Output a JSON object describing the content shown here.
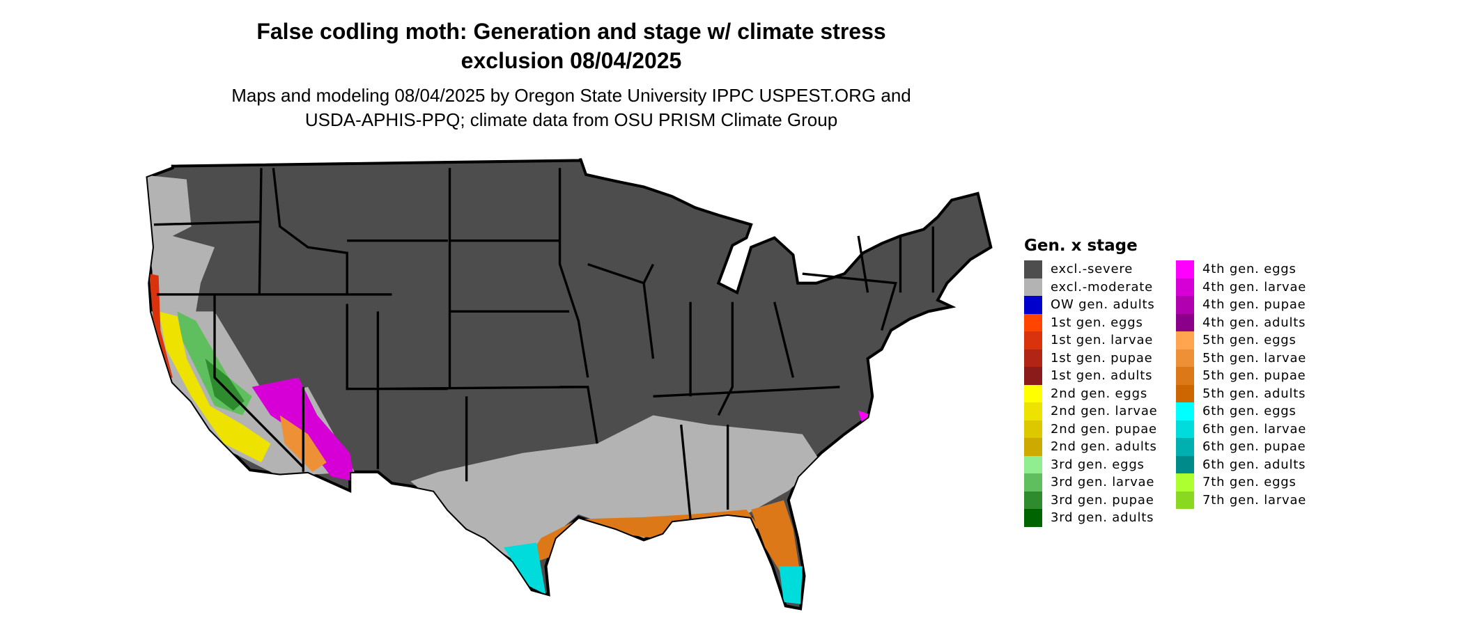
{
  "title": [
    "False codling moth: Generation and stage w/ climate stress",
    "exclusion 08/04/2025"
  ],
  "subtitle": [
    "Maps and modeling 08/04/2025 by Oregon State University IPPC USPEST.ORG and",
    "USDA-APHIS-PPQ; climate data from OSU PRISM Climate Group"
  ],
  "legend": {
    "title": "Gen. x stage",
    "items": [
      {
        "label": "excl.-severe",
        "color": "#4d4d4d"
      },
      {
        "label": "excl.-moderate",
        "color": "#b3b3b3"
      },
      {
        "label": "OW gen. adults",
        "color": "#0000cd"
      },
      {
        "label": "1st gen. eggs",
        "color": "#ff4500"
      },
      {
        "label": "1st gen. larvae",
        "color": "#d9330e"
      },
      {
        "label": "1st gen. pupae",
        "color": "#b22514"
      },
      {
        "label": "1st gen. adults",
        "color": "#8b1a1a"
      },
      {
        "label": "2nd gen. eggs",
        "color": "#ffff00"
      },
      {
        "label": "2nd gen. larvae",
        "color": "#eee200"
      },
      {
        "label": "2nd gen. pupae",
        "color": "#ddc800"
      },
      {
        "label": "2nd gen. adults",
        "color": "#cdaa00"
      },
      {
        "label": "3rd gen. eggs",
        "color": "#90ee90"
      },
      {
        "label": "3rd gen. larvae",
        "color": "#5fbf5f"
      },
      {
        "label": "3rd gen. pupae",
        "color": "#2e8b2e"
      },
      {
        "label": "3rd gen. adults",
        "color": "#006400"
      },
      {
        "label": "4th gen. eggs",
        "color": "#ff00ff"
      },
      {
        "label": "4th gen. larvae",
        "color": "#d600d6"
      },
      {
        "label": "4th gen. pupae",
        "color": "#b000b0"
      },
      {
        "label": "4th gen. adults",
        "color": "#8b008b"
      },
      {
        "label": "5th gen. eggs",
        "color": "#ffa54f"
      },
      {
        "label": "5th gen. larvae",
        "color": "#ee9035"
      },
      {
        "label": "5th gen. pupae",
        "color": "#dd7818"
      },
      {
        "label": "5th gen. adults",
        "color": "#cd6600"
      },
      {
        "label": "6th gen. eggs",
        "color": "#00ffff"
      },
      {
        "label": "6th gen. larvae",
        "color": "#00dcdc"
      },
      {
        "label": "6th gen. pupae",
        "color": "#00b0b0"
      },
      {
        "label": "6th gen. adults",
        "color": "#008b8b"
      },
      {
        "label": "7th gen. eggs",
        "color": "#adff2f"
      },
      {
        "label": "7th gen. larvae",
        "color": "#8bd820"
      }
    ]
  }
}
